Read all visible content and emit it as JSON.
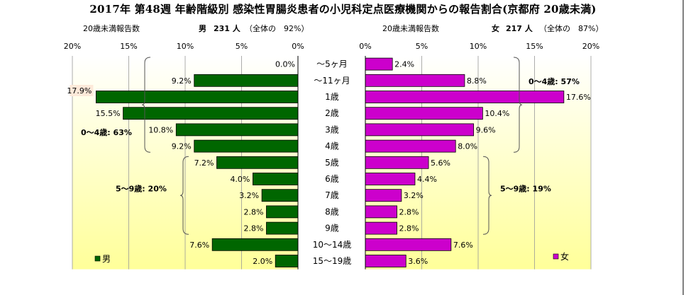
{
  "title": "2017年 第48週 年齢階級別 感染性胃腸炎患者の小児科定点医療機関からの報告割合(京都府 20歳未満)",
  "male_header": {
    "under20_label": "20歳未満報告数",
    "sex": "男",
    "count": "231 人",
    "share": "（全体の　92%）"
  },
  "female_header": {
    "under20_label": "20歳未満報告数",
    "sex": "女",
    "count": "217 人",
    "share": "（全体の　87%）"
  },
  "colors": {
    "male_bar": "#006600",
    "female_bar": "#cc00cc",
    "plot_gradient_top": "#ffffff",
    "plot_gradient_mid": "#ffffcc",
    "plot_gradient_edge": "#ffff99",
    "bracket": "#808080"
  },
  "chart_data": [
    {
      "type": "bar",
      "orientation": "horizontal",
      "side": "left",
      "categories": [
        "～5ヶ月",
        "～11ヶ月",
        "1歳",
        "2歳",
        "3歳",
        "4歳",
        "5歳",
        "6歳",
        "7歳",
        "8歳",
        "9歳",
        "10～14歳",
        "15～19歳"
      ],
      "series": [
        {
          "name": "男",
          "values": [
            0.0,
            9.2,
            17.9,
            15.5,
            10.8,
            9.2,
            7.2,
            4.0,
            3.2,
            2.8,
            2.8,
            7.6,
            2.0
          ],
          "labels": [
            "0.0%",
            "9.2%",
            "17.9%",
            "15.5%",
            "10.8%",
            "9.2%",
            "7.2%",
            "4.0%",
            "3.2%",
            "2.8%",
            "2.8%",
            "7.6%",
            "2.0%"
          ]
        }
      ],
      "x_ticks": [
        "20%",
        "15%",
        "10%",
        "5%",
        "0%"
      ],
      "xlim": [
        0,
        20
      ],
      "x_reversed": true,
      "grid": true,
      "legend": "bottom-left",
      "annotations": [
        {
          "text": "0～4歳: 63%",
          "from_category": "～5ヶ月",
          "to_category": "4歳"
        },
        {
          "text": "5～9歳: 20%",
          "from_category": "5歳",
          "to_category": "9歳"
        }
      ]
    },
    {
      "type": "bar",
      "orientation": "horizontal",
      "side": "right",
      "categories": [
        "～5ヶ月",
        "～11ヶ月",
        "1歳",
        "2歳",
        "3歳",
        "4歳",
        "5歳",
        "6歳",
        "7歳",
        "8歳",
        "9歳",
        "10～14歳",
        "15～19歳"
      ],
      "series": [
        {
          "name": "女",
          "values": [
            2.4,
            8.8,
            17.6,
            10.4,
            9.6,
            8.0,
            5.6,
            4.4,
            3.2,
            2.8,
            2.8,
            7.6,
            3.6
          ],
          "labels": [
            "2.4%",
            "8.8%",
            "17.6%",
            "10.4%",
            "9.6%",
            "8.0%",
            "5.6%",
            "4.4%",
            "3.2%",
            "2.8%",
            "2.8%",
            "7.6%",
            "3.6%"
          ]
        }
      ],
      "x_ticks": [
        "0%",
        "5%",
        "10%",
        "15%",
        "20%"
      ],
      "xlim": [
        0,
        20
      ],
      "grid": true,
      "legend": "bottom-right",
      "annotations": [
        {
          "text": "0～4歳: 57%",
          "from_category": "～5ヶ月",
          "to_category": "4歳"
        },
        {
          "text": "5～9歳: 19%",
          "from_category": "5歳",
          "to_category": "9歳"
        }
      ]
    }
  ]
}
